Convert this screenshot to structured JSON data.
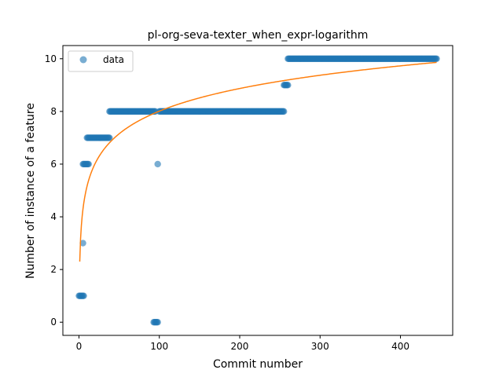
{
  "chart_data": {
    "type": "scatter",
    "title": "pl-org-seva-texter_when_expr-logarithm",
    "xlabel": "Commit number",
    "ylabel": "Number of instance of a feature",
    "xlim": [
      -20,
      465
    ],
    "ylim": [
      -0.5,
      10.5
    ],
    "xticks": [
      0,
      100,
      200,
      300,
      400
    ],
    "yticks": [
      0,
      2,
      4,
      6,
      8,
      10
    ],
    "grid": false,
    "legend": {
      "placement": "top-left",
      "entries": [
        "data"
      ]
    },
    "series": [
      {
        "name": "data",
        "kind": "scatter",
        "color": "#1f77b4",
        "segments": [
          {
            "x_start": 0,
            "x_end": 6,
            "y": 1
          },
          {
            "x_start": 5,
            "x_end": 5,
            "y": 3
          },
          {
            "x_start": 5,
            "x_end": 12,
            "y": 6
          },
          {
            "x_start": 10,
            "x_end": 38,
            "y": 7
          },
          {
            "x_start": 38,
            "x_end": 95,
            "y": 8
          },
          {
            "x_start": 93,
            "x_end": 98,
            "y": 0
          },
          {
            "x_start": 98,
            "x_end": 98,
            "y": 6
          },
          {
            "x_start": 100,
            "x_end": 255,
            "y": 8
          },
          {
            "x_start": 255,
            "x_end": 260,
            "y": 9
          },
          {
            "x_start": 260,
            "x_end": 445,
            "y": 10
          }
        ]
      },
      {
        "name": "",
        "kind": "line",
        "color": "#ff7f0e",
        "model": "logarithmic",
        "x_range": [
          1,
          445
        ],
        "coefficients": {
          "a": 2.3,
          "b": 1.24
        }
      }
    ]
  }
}
